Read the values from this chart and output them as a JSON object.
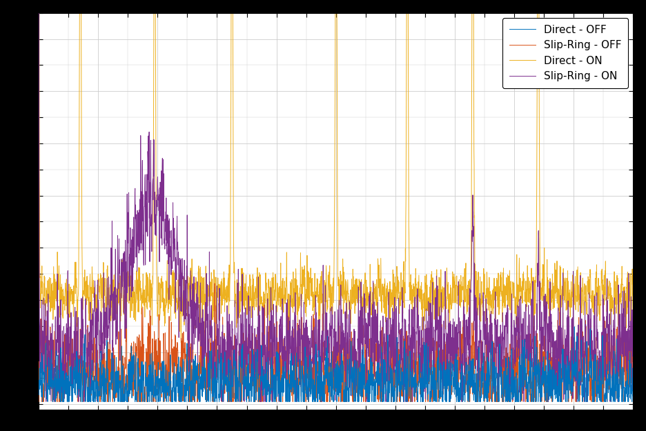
{
  "colors": {
    "direct_off": "#0072BD",
    "slipring_off": "#D95319",
    "direct_on": "#EDB120",
    "slipring_on": "#7E2F8E"
  },
  "legend": [
    "Direct - OFF",
    "Slip-Ring - OFF",
    "Direct - ON",
    "Slip-Ring - ON"
  ],
  "background_color": "#FFFFFF",
  "fig_background": "#000000",
  "grid_color": "#CCCCCC",
  "figsize": [
    9.36,
    6.25
  ],
  "dpi": 100,
  "linewidth": 0.7,
  "n_points": 3000
}
